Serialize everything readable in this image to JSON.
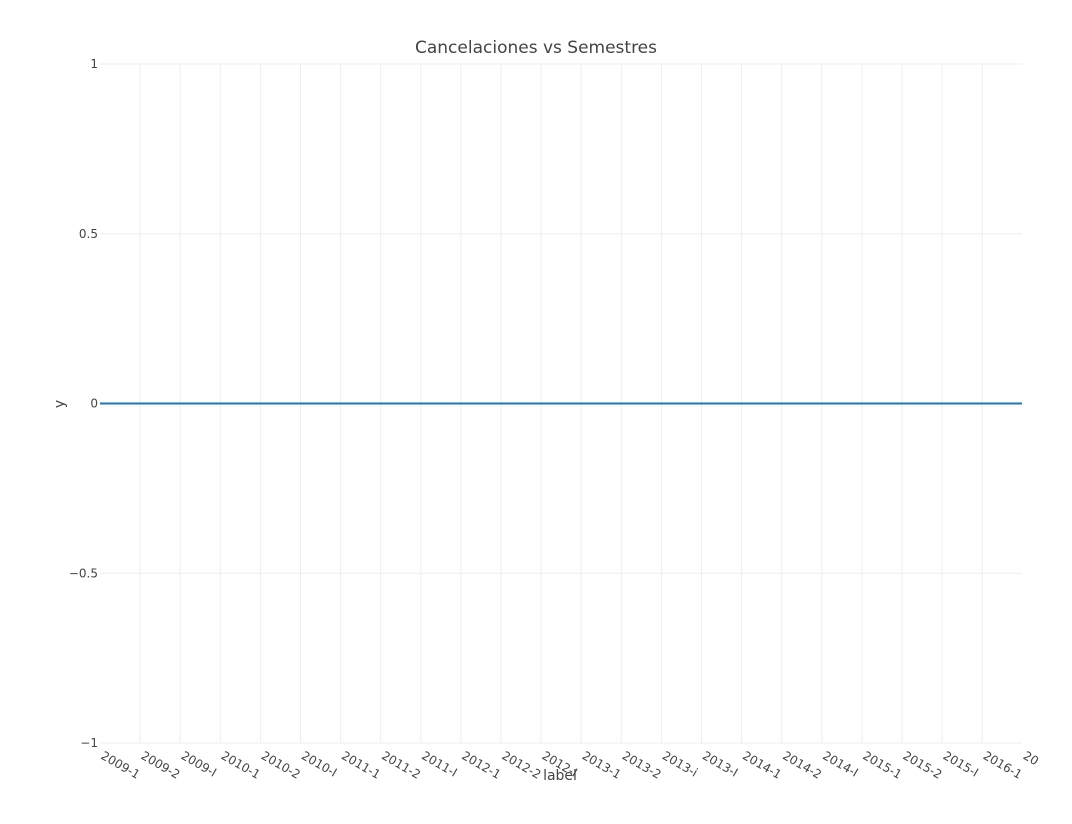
{
  "chart_data": {
    "type": "line",
    "title": "Cancelaciones vs Semestres",
    "xlabel": "label",
    "ylabel": "y",
    "ylim": [
      -1,
      1
    ],
    "yticks": [
      1,
      0.5,
      0,
      -0.5,
      -1
    ],
    "ytick_labels": [
      "1",
      "0.5",
      "0",
      "−0.5",
      "−1"
    ],
    "categories": [
      "2009-1",
      "2009-2",
      "2009-I",
      "2010-1",
      "2010-2",
      "2010-I",
      "2011-1",
      "2011-2",
      "2011-I",
      "2012-1",
      "2012-2",
      "2012-I",
      "2013-1",
      "2013-2",
      "2013-i",
      "2013-I",
      "2014-1",
      "2014-2",
      "2014-I",
      "2015-1",
      "2015-2",
      "2015-I",
      "2016-1",
      "20"
    ],
    "series": [
      {
        "values": [
          0,
          0,
          0,
          0,
          0,
          0,
          0,
          0,
          0,
          0,
          0,
          0,
          0,
          0,
          0,
          0,
          0,
          0,
          0,
          0,
          0,
          0,
          0,
          0
        ],
        "color": "#1f77b4"
      }
    ],
    "grid": true,
    "legend": "none"
  }
}
